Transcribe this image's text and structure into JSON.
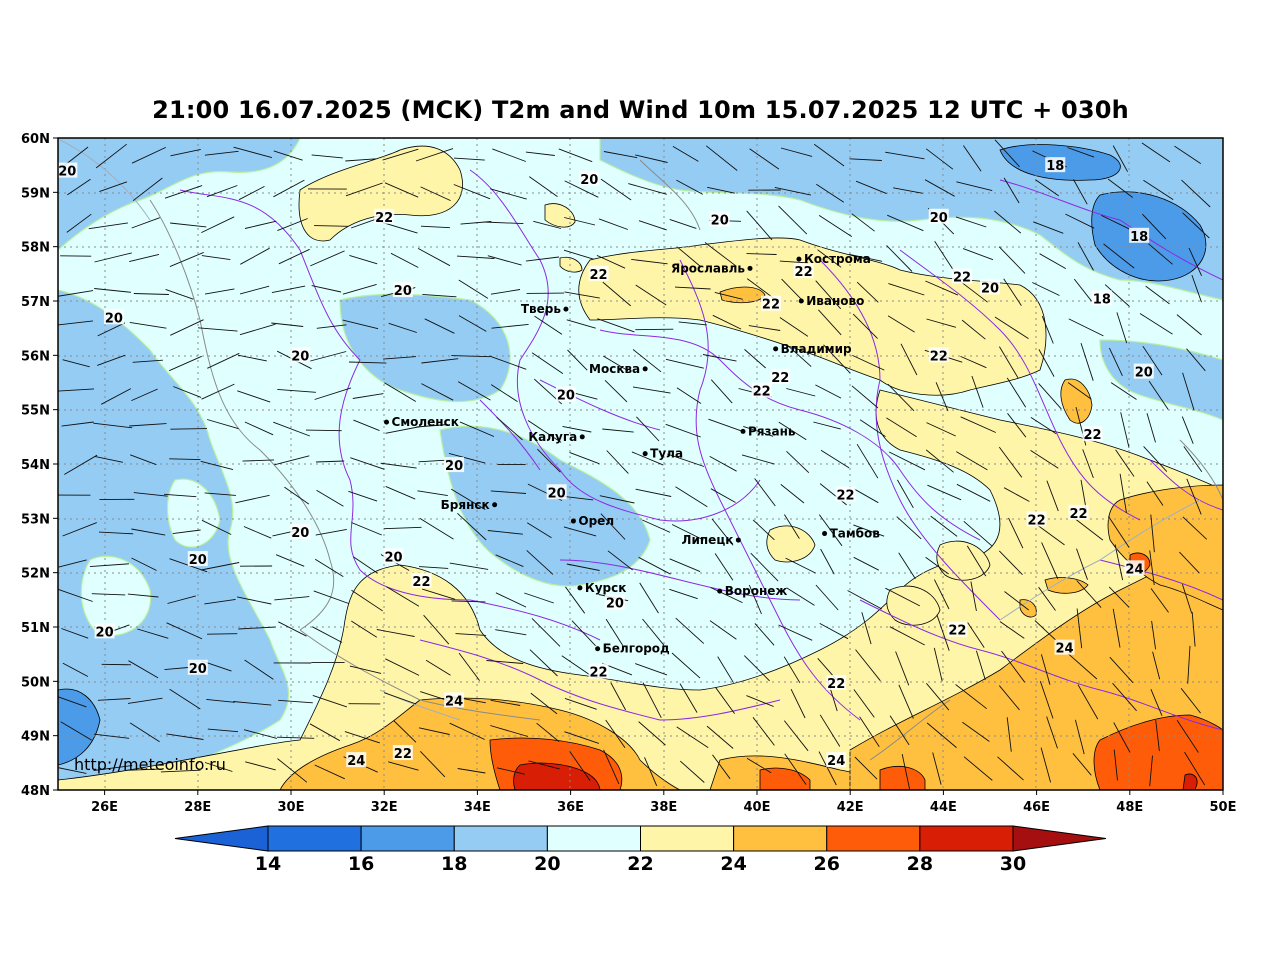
{
  "title": "21:00 16.07.2025 (MCK) T2m and Wind 10m 15.07.2025 12 UTC + 030h",
  "watermark": "http://meteoinfo.ru",
  "map": {
    "lon_range": [
      25,
      50
    ],
    "lat_range": [
      48,
      60
    ],
    "lat_ticks": [
      {
        "value": 60,
        "label": "60N"
      },
      {
        "value": 59,
        "label": "59N"
      },
      {
        "value": 58,
        "label": "58N"
      },
      {
        "value": 57,
        "label": "57N"
      },
      {
        "value": 56,
        "label": "56N"
      },
      {
        "value": 55,
        "label": "55N"
      },
      {
        "value": 54,
        "label": "54N"
      },
      {
        "value": 53,
        "label": "53N"
      },
      {
        "value": 52,
        "label": "52N"
      },
      {
        "value": 51,
        "label": "51N"
      },
      {
        "value": 50,
        "label": "50N"
      },
      {
        "value": 49,
        "label": "49N"
      },
      {
        "value": 48,
        "label": "48N"
      }
    ],
    "lon_ticks": [
      {
        "value": 26,
        "label": "26E"
      },
      {
        "value": 28,
        "label": "28E"
      },
      {
        "value": 30,
        "label": "30E"
      },
      {
        "value": 32,
        "label": "32E"
      },
      {
        "value": 34,
        "label": "34E"
      },
      {
        "value": 36,
        "label": "36E"
      },
      {
        "value": 38,
        "label": "38E"
      },
      {
        "value": 40,
        "label": "40E"
      },
      {
        "value": 42,
        "label": "42E"
      },
      {
        "value": 44,
        "label": "44E"
      },
      {
        "value": 46,
        "label": "46E"
      },
      {
        "value": 48,
        "label": "48E"
      },
      {
        "value": 50,
        "label": "50E"
      }
    ],
    "cities": [
      {
        "name": "Кострома",
        "lon": 40.9,
        "lat": 57.77
      },
      {
        "name": "Ярославль",
        "lon": 39.85,
        "lat": 57.6
      },
      {
        "name": "Иваново",
        "lon": 40.95,
        "lat": 57.0
      },
      {
        "name": "Тверь",
        "lon": 35.9,
        "lat": 56.85
      },
      {
        "name": "Владимир",
        "lon": 40.4,
        "lat": 56.12
      },
      {
        "name": "Москва",
        "lon": 37.6,
        "lat": 55.75
      },
      {
        "name": "Смоленск",
        "lon": 32.05,
        "lat": 54.77
      },
      {
        "name": "Калуга",
        "lon": 36.25,
        "lat": 54.5
      },
      {
        "name": "Рязань",
        "lon": 39.7,
        "lat": 54.6
      },
      {
        "name": "Тула",
        "lon": 37.6,
        "lat": 54.19
      },
      {
        "name": "Брянск",
        "lon": 34.37,
        "lat": 53.25
      },
      {
        "name": "Орел",
        "lon": 36.06,
        "lat": 52.95
      },
      {
        "name": "Липецк",
        "lon": 39.6,
        "lat": 52.6
      },
      {
        "name": "Тамбов",
        "lon": 41.45,
        "lat": 52.72
      },
      {
        "name": "Курск",
        "lon": 36.2,
        "lat": 51.72
      },
      {
        "name": "Воронеж",
        "lon": 39.2,
        "lat": 51.66
      },
      {
        "name": "Белгород",
        "lon": 36.58,
        "lat": 50.6
      }
    ],
    "isotherm_labels": [
      {
        "text": "20",
        "lon": 25.2,
        "lat": 59.4
      },
      {
        "text": "18",
        "lon": 46.4,
        "lat": 59.5
      },
      {
        "text": "20",
        "lon": 36.4,
        "lat": 59.25
      },
      {
        "text": "22",
        "lon": 32.0,
        "lat": 58.55
      },
      {
        "text": "20",
        "lon": 39.2,
        "lat": 58.5
      },
      {
        "text": "20",
        "lon": 43.9,
        "lat": 58.55
      },
      {
        "text": "18",
        "lon": 48.2,
        "lat": 58.2
      },
      {
        "text": "22",
        "lon": 36.6,
        "lat": 57.5
      },
      {
        "text": "22",
        "lon": 41.0,
        "lat": 57.55
      },
      {
        "text": "22",
        "lon": 44.4,
        "lat": 57.45
      },
      {
        "text": "20",
        "lon": 45.0,
        "lat": 57.25
      },
      {
        "text": "20",
        "lon": 32.4,
        "lat": 57.2
      },
      {
        "text": "22",
        "lon": 40.3,
        "lat": 56.95
      },
      {
        "text": "18",
        "lon": 47.4,
        "lat": 57.05
      },
      {
        "text": "20",
        "lon": 26.2,
        "lat": 56.7
      },
      {
        "text": "20",
        "lon": 30.2,
        "lat": 56.0
      },
      {
        "text": "22",
        "lon": 43.9,
        "lat": 56.0
      },
      {
        "text": "20",
        "lon": 48.3,
        "lat": 55.7
      },
      {
        "text": "22",
        "lon": 40.5,
        "lat": 55.6
      },
      {
        "text": "22",
        "lon": 40.1,
        "lat": 55.35
      },
      {
        "text": "20",
        "lon": 35.9,
        "lat": 55.28
      },
      {
        "text": "22",
        "lon": 47.2,
        "lat": 54.55
      },
      {
        "text": "20",
        "lon": 33.5,
        "lat": 53.98
      },
      {
        "text": "20",
        "lon": 35.7,
        "lat": 53.48
      },
      {
        "text": "22",
        "lon": 41.9,
        "lat": 53.44
      },
      {
        "text": "22",
        "lon": 46.9,
        "lat": 53.1
      },
      {
        "text": "22",
        "lon": 46.0,
        "lat": 52.98
      },
      {
        "text": "20",
        "lon": 30.2,
        "lat": 52.75
      },
      {
        "text": "20",
        "lon": 28.0,
        "lat": 52.25
      },
      {
        "text": "20",
        "lon": 32.2,
        "lat": 52.3
      },
      {
        "text": "22",
        "lon": 32.8,
        "lat": 51.85
      },
      {
        "text": "24",
        "lon": 48.1,
        "lat": 52.08
      },
      {
        "text": "20",
        "lon": 36.95,
        "lat": 51.45
      },
      {
        "text": "22",
        "lon": 44.3,
        "lat": 50.95
      },
      {
        "text": "20",
        "lon": 26.0,
        "lat": 50.92
      },
      {
        "text": "24",
        "lon": 46.6,
        "lat": 50.62
      },
      {
        "text": "20",
        "lon": 28.0,
        "lat": 50.25
      },
      {
        "text": "22",
        "lon": 36.6,
        "lat": 50.18
      },
      {
        "text": "22",
        "lon": 41.7,
        "lat": 49.97
      },
      {
        "text": "24",
        "lon": 33.5,
        "lat": 49.65
      },
      {
        "text": "22",
        "lon": 32.4,
        "lat": 48.68
      },
      {
        "text": "24",
        "lon": 31.4,
        "lat": 48.55
      },
      {
        "text": "24",
        "lon": 41.7,
        "lat": 48.55
      }
    ]
  },
  "colorbar": {
    "colors": [
      "#2070e0",
      "#4c9be8",
      "#95ccf4",
      "#e0ffff",
      "#fff5a8",
      "#ffc040",
      "#ff5c0a",
      "#d81e05"
    ],
    "extend_low_color": "#1a62d6",
    "extend_high_color": "#a50f0f",
    "labels": [
      "14",
      "16",
      "18",
      "20",
      "22",
      "24",
      "26",
      "28",
      "30"
    ]
  }
}
